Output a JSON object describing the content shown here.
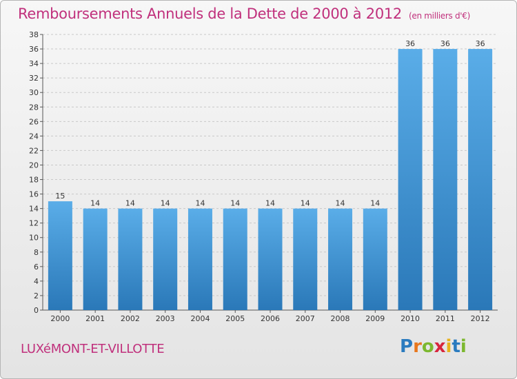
{
  "title": "Remboursements Annuels de la Dette de 2000 à 2012",
  "subtitle": "(en milliers d'€)",
  "commune": "LUXéMONT-ET-VILLOTTE",
  "logo": {
    "letters": [
      "P",
      "r",
      "o",
      "x",
      "i",
      "t",
      "i"
    ],
    "colors": [
      "#2a7bbf",
      "#e8771d",
      "#7cb82f",
      "#d7263d",
      "#e8b21d",
      "#2a7bbf",
      "#7cb82f"
    ]
  },
  "colors": {
    "title": "#c0307c",
    "bar_top": "#5aade8",
    "bar_bottom": "#2a78b8",
    "grid": "#c8c8c8"
  },
  "chart_data": {
    "type": "bar",
    "categories": [
      "2000",
      "2001",
      "2002",
      "2003",
      "2004",
      "2005",
      "2006",
      "2007",
      "2008",
      "2009",
      "2010",
      "2011",
      "2012"
    ],
    "values": [
      15,
      14,
      14,
      14,
      14,
      14,
      14,
      14,
      14,
      14,
      36,
      36,
      36
    ],
    "data_labels": [
      "15",
      "14",
      "14",
      "14",
      "14",
      "14",
      "14",
      "14",
      "14",
      "14",
      "36",
      "36",
      "36"
    ],
    "ylim": [
      0,
      38
    ],
    "yticks": [
      "0",
      "2",
      "4",
      "6",
      "8",
      "10",
      "12",
      "14",
      "16",
      "18",
      "20",
      "22",
      "24",
      "26",
      "28",
      "30",
      "32",
      "34",
      "36",
      "38"
    ],
    "grid": true,
    "xlabel": "",
    "ylabel": ""
  }
}
